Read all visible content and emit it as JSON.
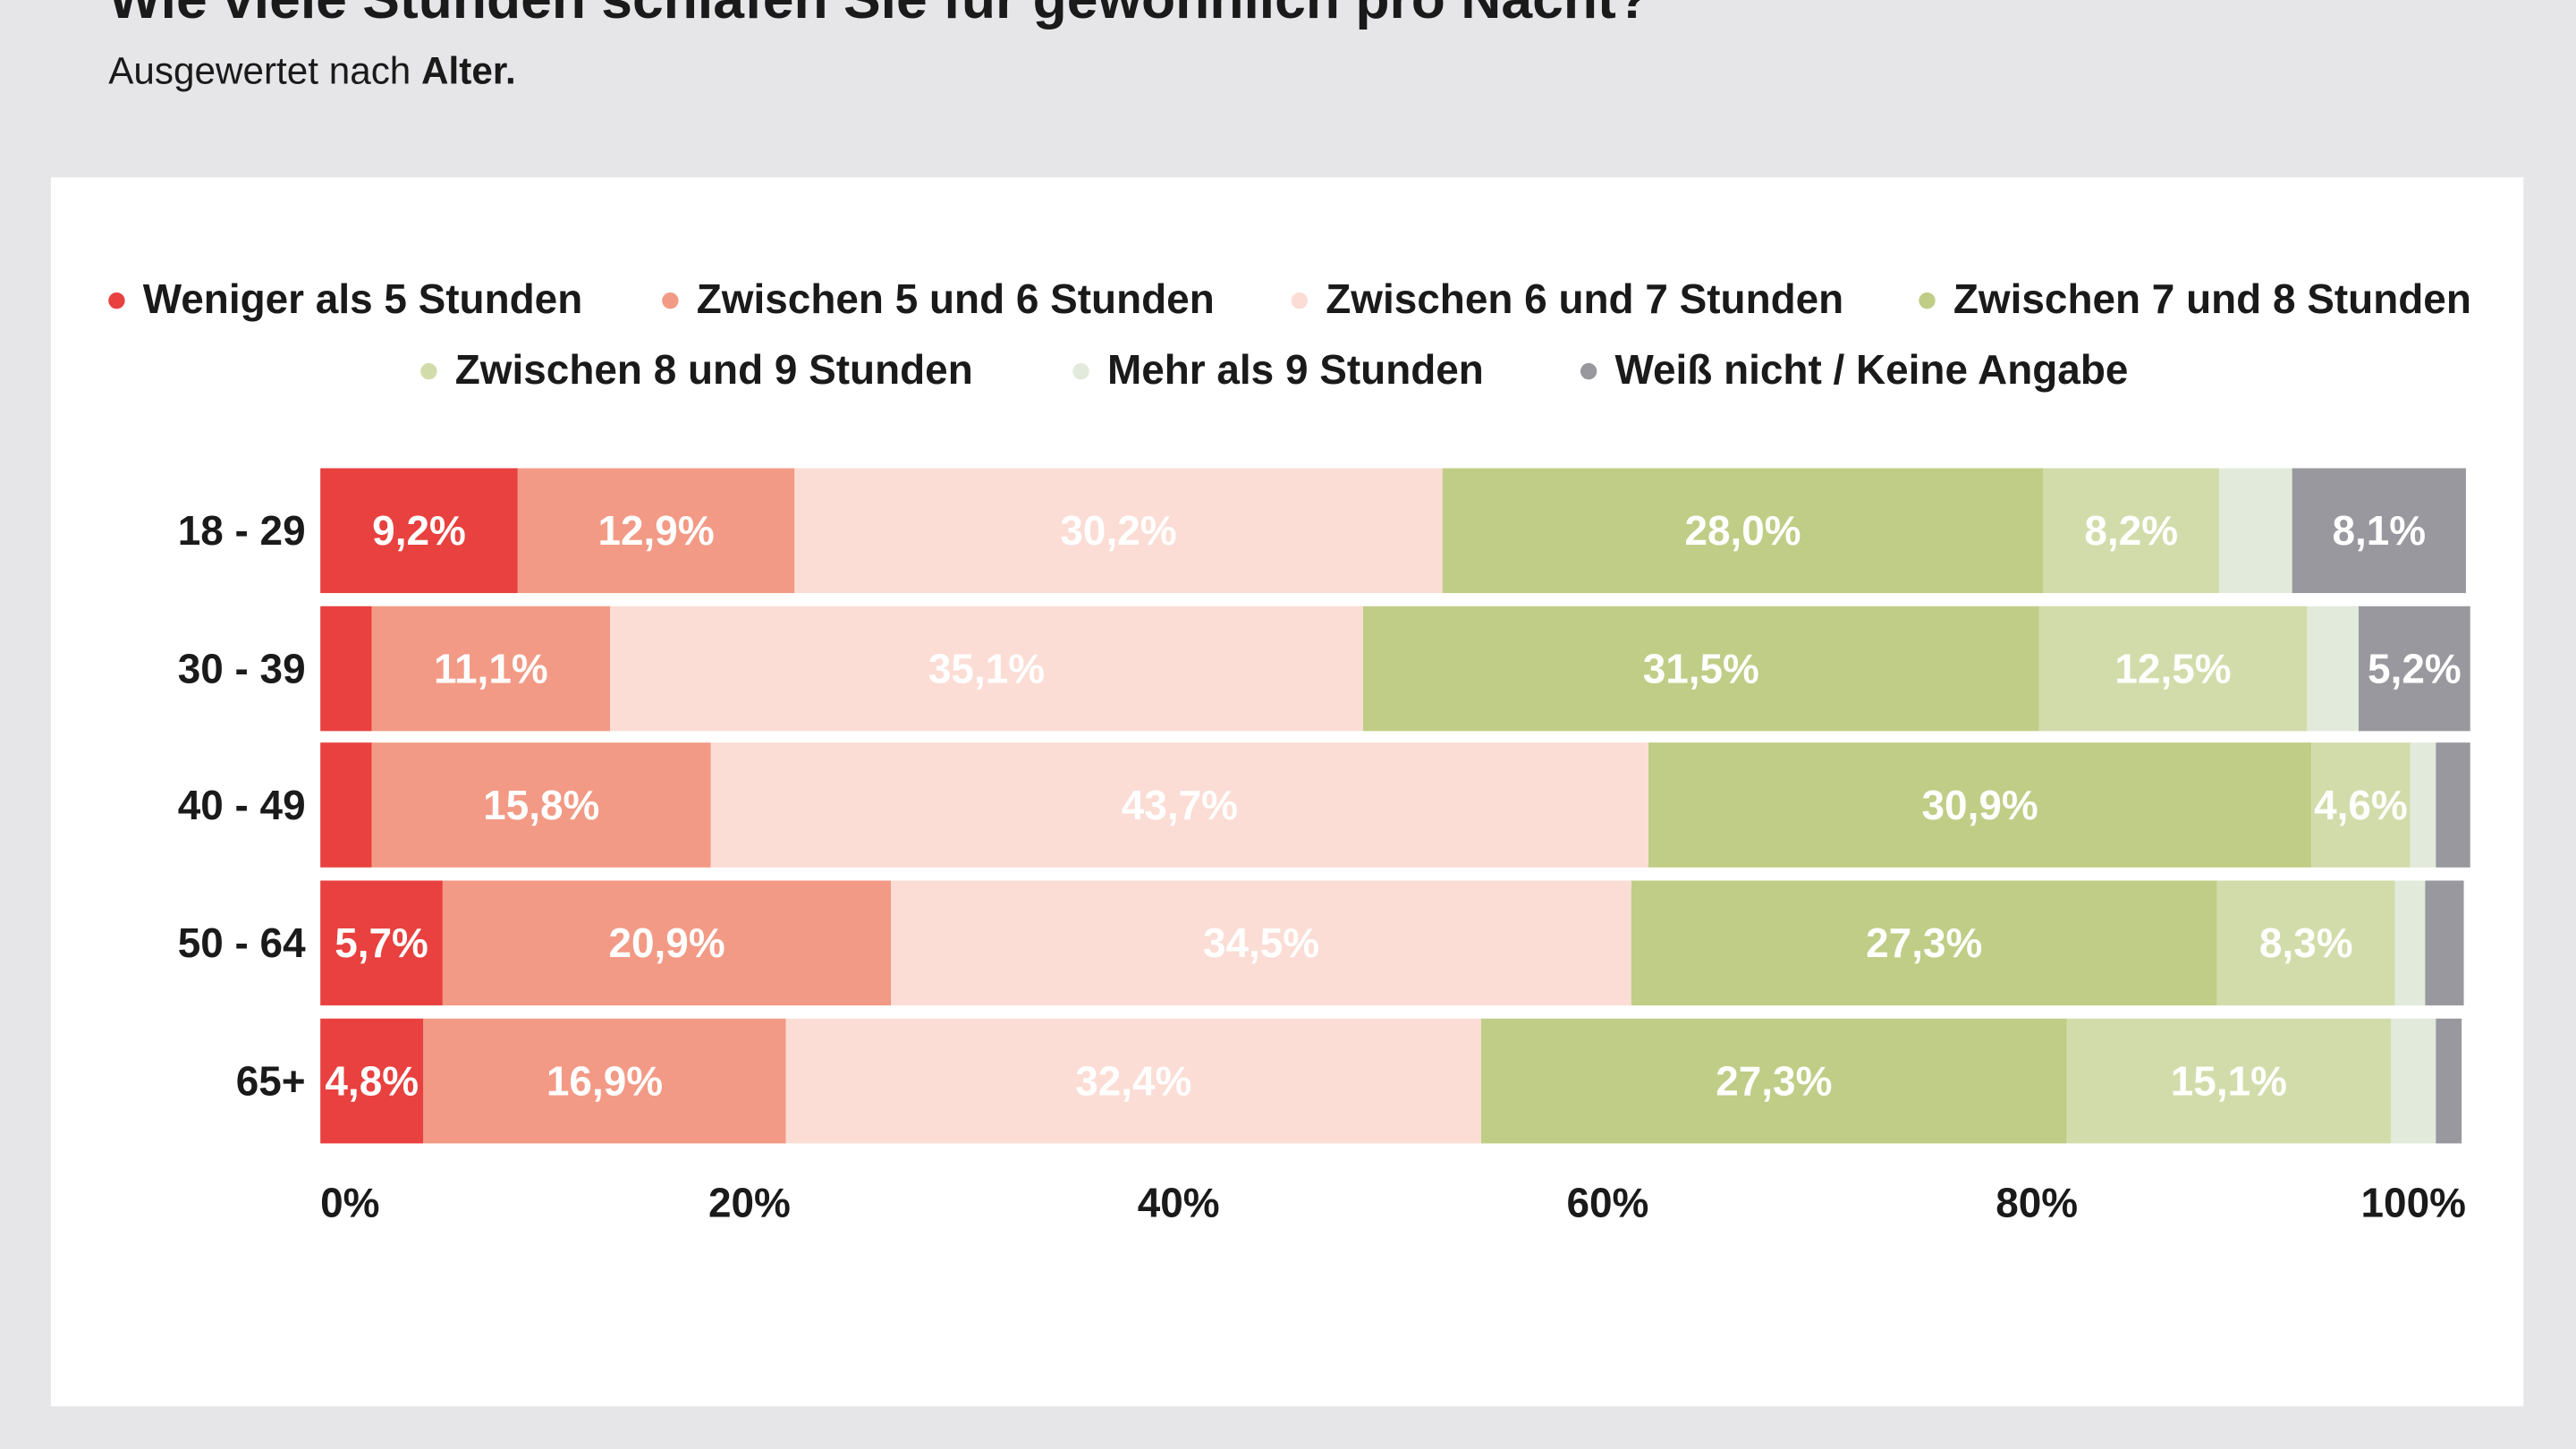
{
  "chart_data": {
    "type": "stacked-bar-horizontal",
    "title": "Wie viele Stunden schlafen Sie für gewöhnlich pro Nacht?",
    "subtitle": "Ausgewertet nach",
    "subtitle_emphasis": "Alter.",
    "categories": [
      "18 - 29",
      "30 - 39",
      "40 - 49",
      "50 - 64",
      "65+"
    ],
    "series": [
      {
        "name": "Weniger als 5 Stunden",
        "color": "#e8413f",
        "values": [
          9.2,
          2.4,
          2.4,
          5.7,
          4.8
        ],
        "value_labels": [
          "9,2%",
          null,
          null,
          "5,7%",
          "4,8%"
        ]
      },
      {
        "name": "Zwischen 5 und 6 Stunden",
        "color": "#f29a85",
        "values": [
          12.9,
          11.1,
          15.8,
          20.9,
          16.9
        ],
        "value_labels": [
          "12,9%",
          "11,1%",
          "15,8%",
          "20,9%",
          "16,9%"
        ]
      },
      {
        "name": "Zwischen 6 und 7 Stunden",
        "color": "#fbddd5",
        "values": [
          30.2,
          35.1,
          43.7,
          34.5,
          32.4
        ],
        "value_labels": [
          "30,2%",
          "35,1%",
          "43,7%",
          "34,5%",
          "32,4%"
        ]
      },
      {
        "name": "Zwischen 7 und 8 Stunden",
        "color": "#bfcd86",
        "values": [
          28.0,
          31.5,
          30.9,
          27.3,
          27.3
        ],
        "value_labels": [
          "28,0%",
          "31,5%",
          "30,9%",
          "27,3%",
          "27,3%"
        ]
      },
      {
        "name": "Zwischen 8 und 9 Stunden",
        "color": "#d2dcaa",
        "values": [
          8.2,
          12.5,
          4.6,
          8.3,
          15.1
        ],
        "value_labels": [
          "8,2%",
          "12,5%",
          "4,6%",
          "8,3%",
          "15,1%"
        ]
      },
      {
        "name": "Mehr als 9 Stunden",
        "color": "#e1eadb",
        "values": [
          3.4,
          2.4,
          1.2,
          1.4,
          2.1
        ],
        "value_labels": [
          null,
          null,
          null,
          null,
          null
        ]
      },
      {
        "name": "Weiß nicht / Keine Angabe",
        "color": "#98989e",
        "values": [
          8.1,
          5.2,
          1.6,
          1.8,
          1.2
        ],
        "value_labels": [
          "8,1%",
          "5,2%",
          null,
          null,
          null
        ]
      }
    ],
    "xlim": [
      0,
      100
    ],
    "xticks": [
      {
        "value": 0,
        "label": "0%"
      },
      {
        "value": 20,
        "label": "20%"
      },
      {
        "value": 40,
        "label": "40%"
      },
      {
        "value": 60,
        "label": "60%"
      },
      {
        "value": 80,
        "label": "80%"
      },
      {
        "value": 100,
        "label": "100%"
      }
    ]
  }
}
